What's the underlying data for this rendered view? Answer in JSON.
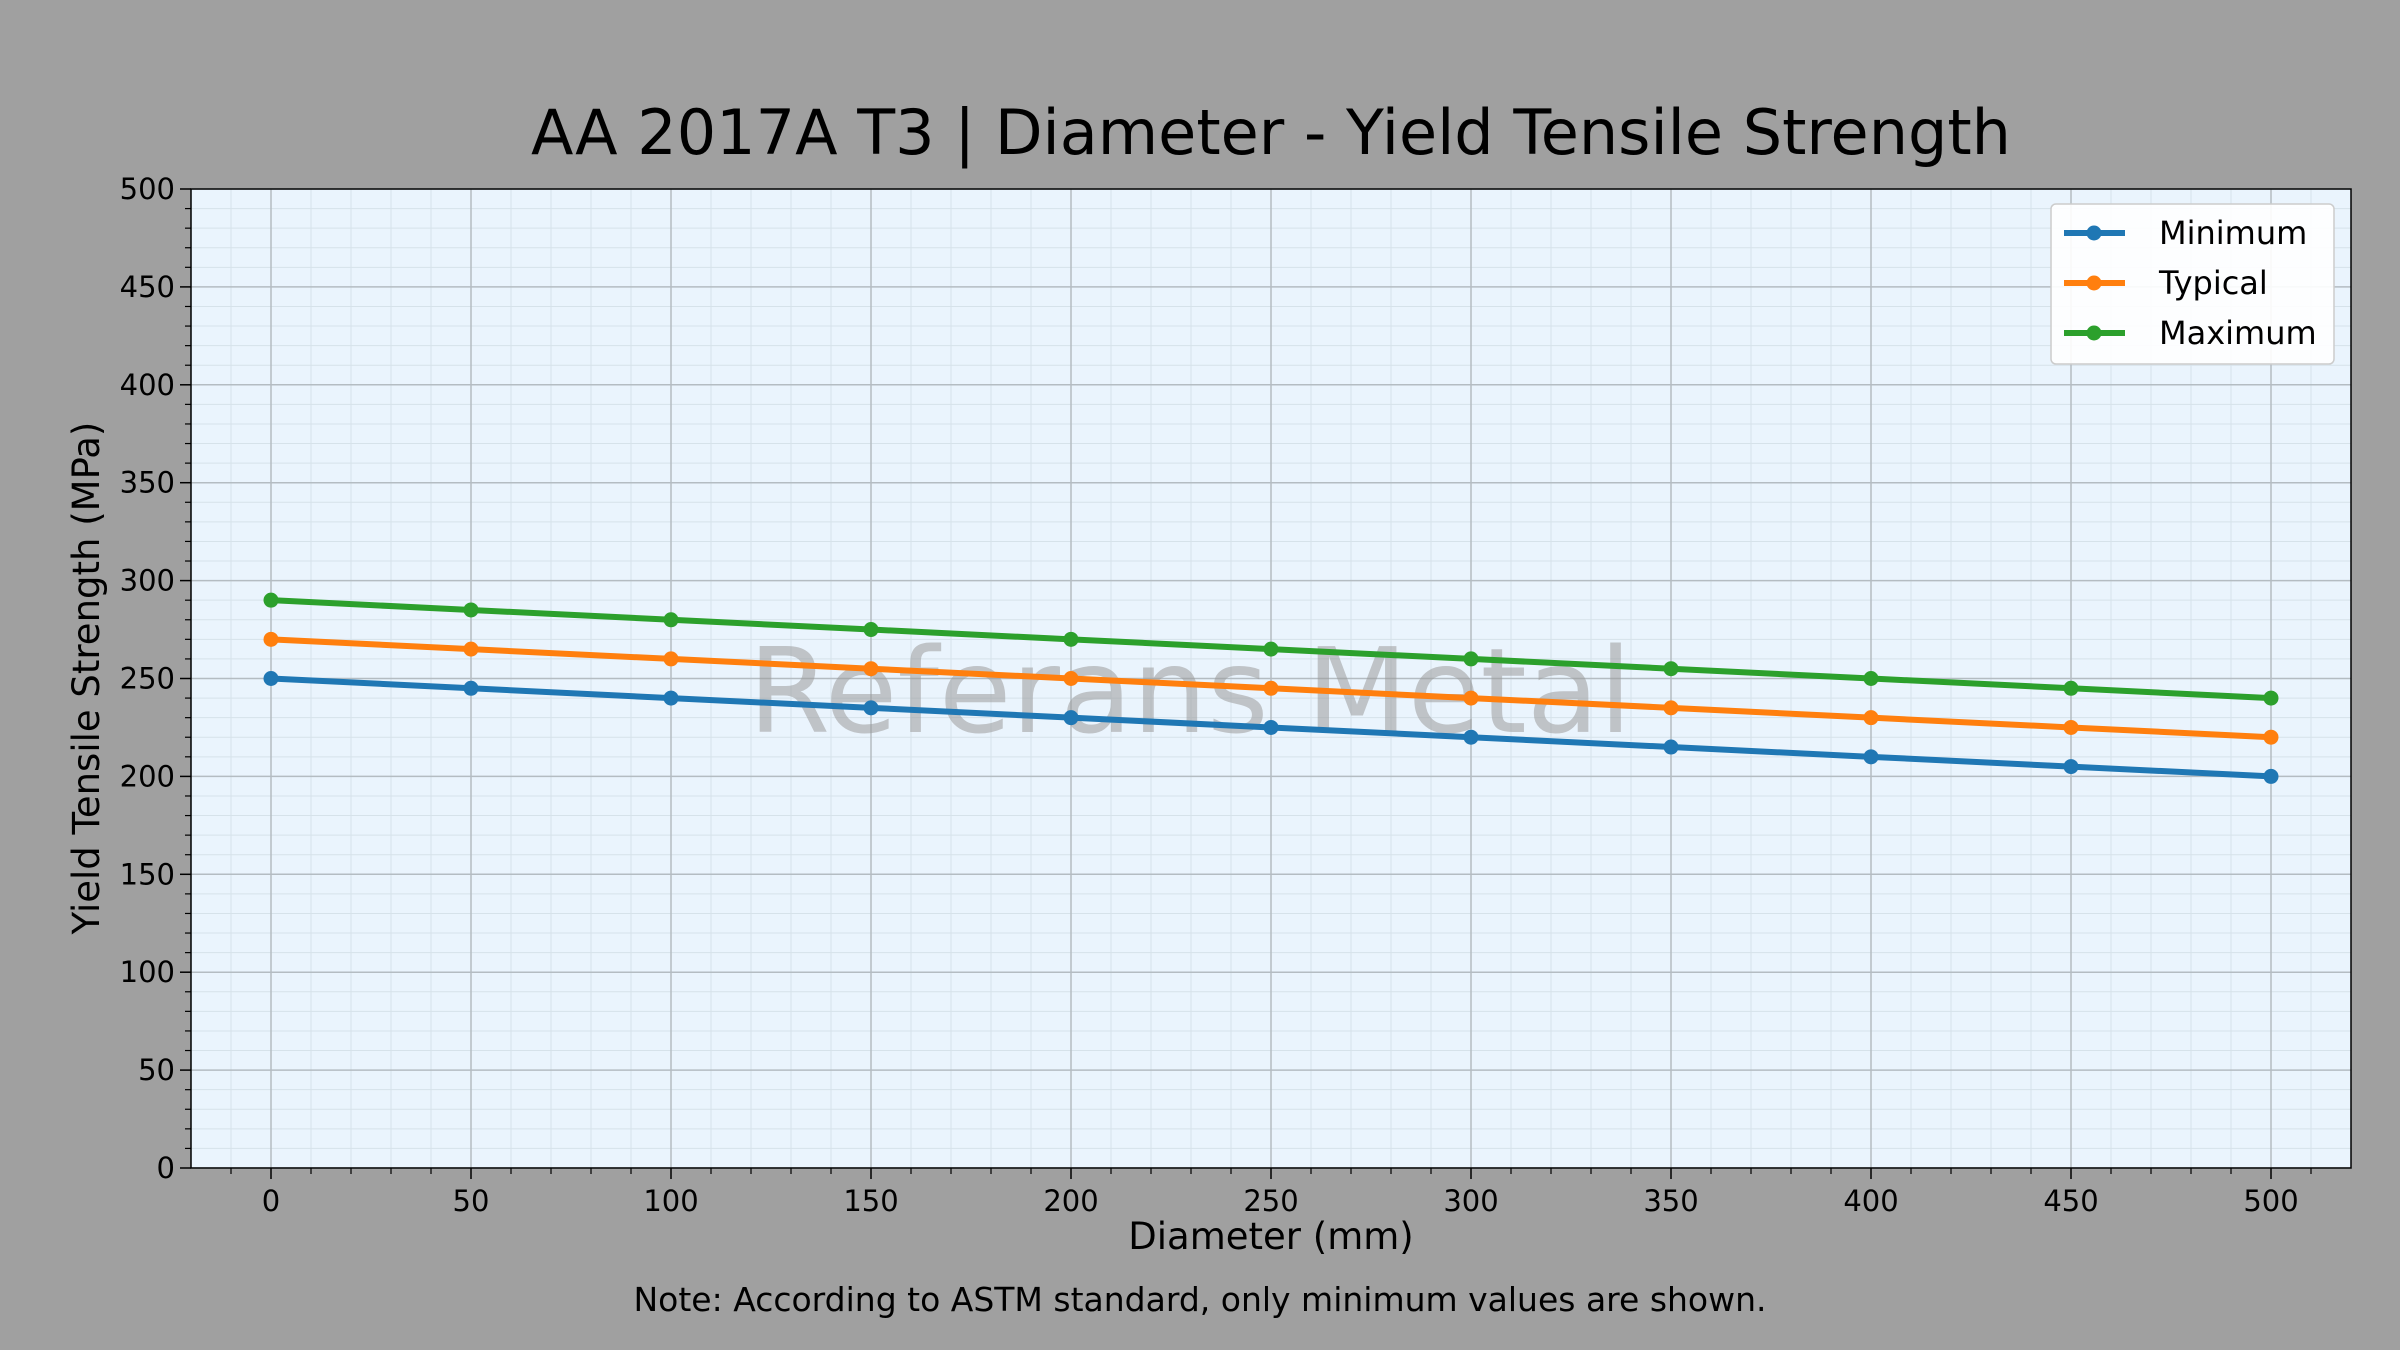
{
  "colors": {
    "figure_background": "#a0a0a0",
    "plot_background": "#eaf4fd",
    "major_grid": "#b4bcc2",
    "minor_grid": "#d6e2ea",
    "watermark": "#9a9a9a"
  },
  "watermark": "Referans Metal",
  "note": "Note: According to ASTM standard, only minimum values are shown.",
  "chart_data": {
    "type": "line",
    "title": "AA 2017A T3 | Diameter - Yield Tensile Strength",
    "xlabel": "Diameter (mm)",
    "ylabel": "Yield Tensile Strength (MPa)",
    "xlim": [
      -20,
      520
    ],
    "ylim": [
      0,
      500
    ],
    "xticks": [
      0,
      50,
      100,
      150,
      200,
      250,
      300,
      350,
      400,
      450,
      500
    ],
    "yticks": [
      0,
      50,
      100,
      150,
      200,
      250,
      300,
      350,
      400,
      450,
      500
    ],
    "grid": true,
    "minor_grid": true,
    "legend_position": "top-right",
    "x": [
      0,
      50,
      100,
      150,
      200,
      250,
      300,
      350,
      400,
      450,
      500
    ],
    "series": [
      {
        "name": "Minimum",
        "color": "#1f77b4",
        "values": [
          250,
          245,
          240,
          235,
          230,
          225,
          220,
          215,
          210,
          205,
          200
        ]
      },
      {
        "name": "Typical",
        "color": "#ff7f0e",
        "values": [
          270,
          265,
          260,
          255,
          250,
          245,
          240,
          235,
          230,
          225,
          220
        ]
      },
      {
        "name": "Maximum",
        "color": "#2ca02c",
        "values": [
          290,
          285,
          280,
          275,
          270,
          265,
          260,
          255,
          250,
          245,
          240
        ]
      }
    ]
  }
}
